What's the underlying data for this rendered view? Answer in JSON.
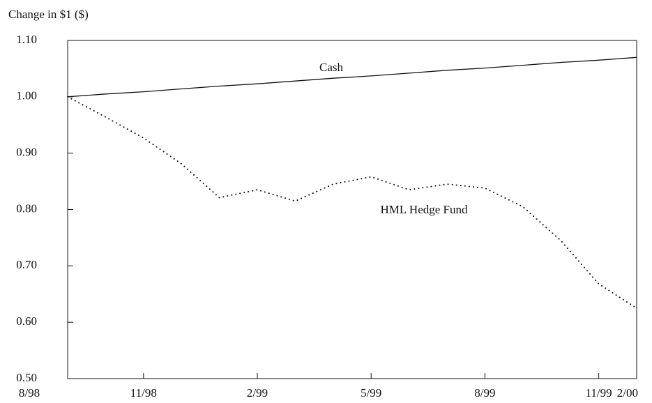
{
  "chart_data": {
    "type": "line",
    "y_label": "Change in $1 ($)",
    "categories": [
      "8/98",
      null,
      "11/98",
      null,
      null,
      "2/99",
      null,
      null,
      "5/99",
      null,
      null,
      "8/99",
      null,
      null,
      "11/99",
      "2/00"
    ],
    "series": [
      {
        "name": "Cash",
        "color": "#111111",
        "style": "solid",
        "values": [
          1.0,
          1.005,
          1.009,
          1.014,
          1.019,
          1.023,
          1.028,
          1.033,
          1.037,
          1.042,
          1.047,
          1.051,
          1.056,
          1.061,
          1.065,
          1.07
        ]
      },
      {
        "name": "HML Hedge Fund",
        "color": "#111111",
        "style": "dotted",
        "values": [
          1.0,
          0.964,
          0.927,
          0.881,
          0.821,
          0.835,
          0.815,
          0.845,
          0.858,
          0.835,
          0.845,
          0.838,
          0.805,
          0.745,
          0.668,
          0.625
        ]
      }
    ],
    "annotations": [
      "Cash",
      "HML Hedge Fund"
    ],
    "ylim": [
      0.5,
      1.1
    ],
    "yticks": [
      {
        "value": 0.5,
        "label": "0.50"
      },
      {
        "value": 0.6,
        "label": "0.60"
      },
      {
        "value": 0.7,
        "label": "0.70"
      },
      {
        "value": 0.8,
        "label": "0.80"
      },
      {
        "value": 0.9,
        "label": "0.90"
      },
      {
        "value": 1.0,
        "label": "1.00"
      },
      {
        "value": 1.1,
        "label": "1.10"
      }
    ],
    "grid": false
  }
}
